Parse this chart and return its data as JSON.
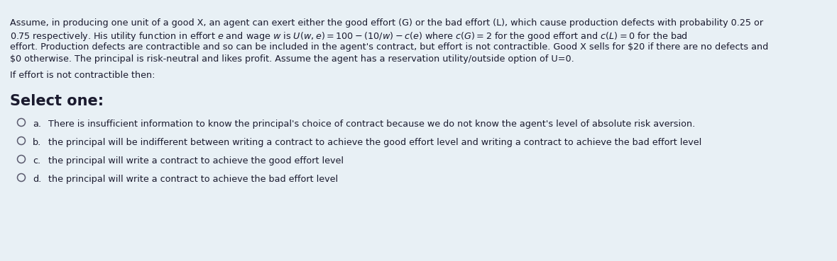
{
  "background_color": "#e8f0f5",
  "fig_width": 11.79,
  "fig_height": 3.69,
  "dpi": 100,
  "line1": "Assume, in producing one unit of a good X, an agent can exert either the good effort (G) or the bad effort (L), which cause production defects with probability 0.25 or",
  "line2": "0.75 respectively. His utility function in effort $e$ and wage $w$ is $U(w, e) = 100 - (10/w) - c(e)$ where $c(G) = 2$ for the good effort and $c(L) = 0$ for the bad",
  "line3": "effort. Production defects are contractible and so can be included in the agent's contract, but effort is not contractible. Good X sells for $20 if there are no defects and",
  "line4": "$0 otherwise. The principal is risk-neutral and likes profit. Assume the agent has a reservation utility/outside option of U=0.",
  "question_text": "If effort is not contractible then:",
  "select_text": "Select one:",
  "options": [
    {
      "label": "a.",
      "text": "There is insufficient information to know the principal's choice of contract because we do not know the agent's level of absolute risk aversion."
    },
    {
      "label": "b.",
      "text": "the principal will be indifferent between writing a contract to achieve the good effort level and writing a contract to achieve the bad effort level"
    },
    {
      "label": "c.",
      "text": "the principal will write a contract to achieve the good effort level"
    },
    {
      "label": "d.",
      "text": "the principal will write a contract to achieve the bad effort level"
    }
  ],
  "text_color": "#1a1a2e",
  "font_size_paragraph": 9.2,
  "font_size_question": 9.2,
  "font_size_select": 15,
  "font_size_options": 9.2
}
